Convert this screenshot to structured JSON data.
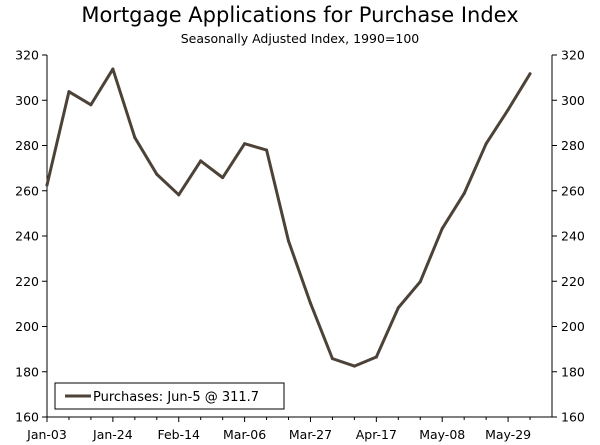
{
  "chart_data": {
    "type": "line",
    "title": "Mortgage Applications for Purchase Index",
    "subtitle": "Seasonally Adjusted Index, 1990=100",
    "xlabel": "",
    "ylabel": "",
    "ylim": [
      160,
      320
    ],
    "y_ticks": [
      160,
      180,
      200,
      220,
      240,
      260,
      280,
      300,
      320
    ],
    "x_tick_labels": [
      "Jan-03",
      "Jan-24",
      "Feb-14",
      "Mar-06",
      "Mar-27",
      "Apr-17",
      "May-08",
      "May-29"
    ],
    "x": [
      "Jan-03",
      "Jan-10",
      "Jan-17",
      "Jan-24",
      "Jan-31",
      "Feb-07",
      "Feb-14",
      "Feb-21",
      "Feb-28",
      "Mar-06",
      "Mar-13",
      "Mar-20",
      "Mar-27",
      "Apr-03",
      "Apr-10",
      "Apr-17",
      "Apr-24",
      "May-01",
      "May-08",
      "May-15",
      "May-22",
      "May-29",
      "Jun-05"
    ],
    "series": [
      {
        "name": "Purchases: Jun-5 @ 311.7",
        "color": "#4d4238",
        "values": [
          262.5,
          303.8,
          298.0,
          313.8,
          283.5,
          267.3,
          258.2,
          273.2,
          265.8,
          280.8,
          278.0,
          237.8,
          210.3,
          185.8,
          182.5,
          186.5,
          208.3,
          219.8,
          243.3,
          258.8,
          280.8,
          295.8,
          311.7
        ]
      }
    ],
    "grid": false,
    "right_axis": true,
    "legend_position": "bottom-left"
  }
}
